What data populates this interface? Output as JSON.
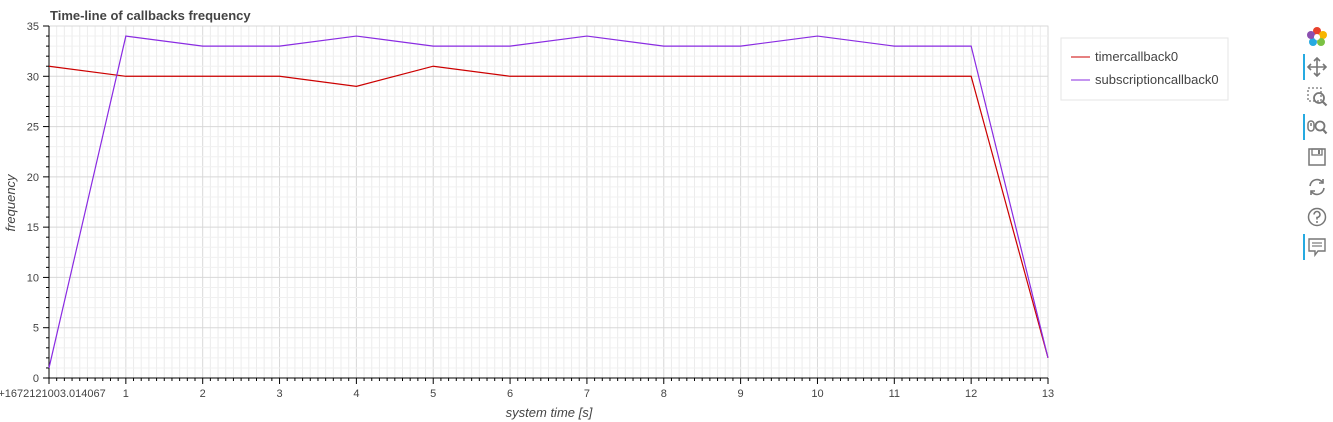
{
  "chart_data": {
    "type": "line",
    "title": "Time-line of callbacks frequency",
    "xlabel": "system time [s]",
    "ylabel": "frequency",
    "x_tick_labels": [
      "0+1672121003.014067",
      "1",
      "2",
      "3",
      "4",
      "5",
      "6",
      "7",
      "8",
      "9",
      "10",
      "11",
      "12",
      "13"
    ],
    "y_tick_labels": [
      "0",
      "5",
      "10",
      "15",
      "20",
      "25",
      "30",
      "35"
    ],
    "xlim": [
      0,
      13
    ],
    "ylim": [
      0,
      35
    ],
    "grid": true,
    "legend_position": "right",
    "x": [
      0,
      1,
      2,
      3,
      4,
      5,
      6,
      7,
      8,
      9,
      10,
      11,
      12,
      13
    ],
    "series": [
      {
        "name": "timercallback0",
        "color": "#cc0000",
        "values": [
          31,
          30,
          30,
          30,
          29,
          31,
          30,
          30,
          30,
          30,
          30,
          30,
          30,
          2
        ]
      },
      {
        "name": "subscriptioncallback0",
        "color": "#8a2be2",
        "values": [
          1,
          34,
          33,
          33,
          34,
          33,
          33,
          34,
          33,
          33,
          34,
          33,
          33,
          2
        ]
      }
    ]
  },
  "toolbar": {
    "items": [
      {
        "icon": "bokeh-logo-icon",
        "active": false
      },
      {
        "icon": "pan-icon",
        "active": true
      },
      {
        "icon": "box-zoom-icon",
        "active": false
      },
      {
        "icon": "wheel-zoom-icon",
        "active": true
      },
      {
        "icon": "save-icon",
        "active": false
      },
      {
        "icon": "reset-icon",
        "active": false
      },
      {
        "icon": "help-icon",
        "active": false
      },
      {
        "icon": "hover-icon",
        "active": true
      }
    ]
  }
}
